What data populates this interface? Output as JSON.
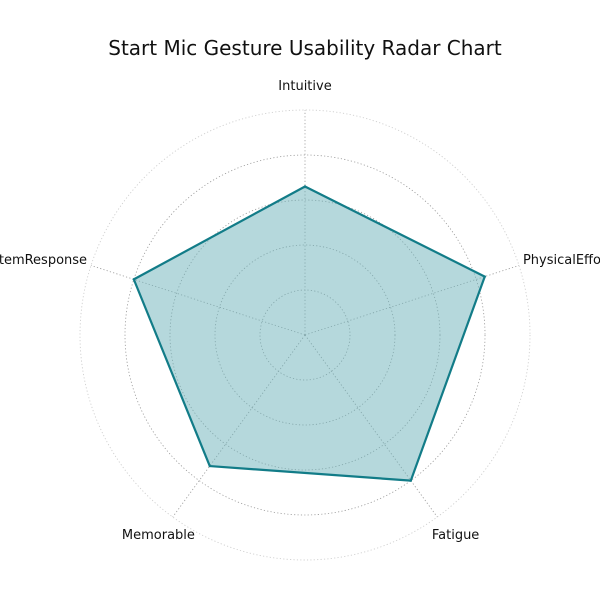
{
  "chart_data": {
    "type": "radar",
    "title": "Start Mic Gesture Usability Radar Chart",
    "axes": [
      "Intuitive",
      "PhysicalEffort",
      "Fatigue",
      "Memorable",
      "SystemResponse"
    ],
    "series": [
      {
        "values": [
          3.3,
          4.2,
          4.0,
          3.6,
          4.0
        ]
      }
    ],
    "rmax": 5,
    "rings": [
      1,
      2,
      3,
      4,
      5
    ],
    "grid": true,
    "show_radial_tick_labels": false,
    "colors": {
      "series_line": "#127c88",
      "series_fill": "#6bb2ba",
      "grid": "#999999",
      "text": "#111111"
    }
  }
}
